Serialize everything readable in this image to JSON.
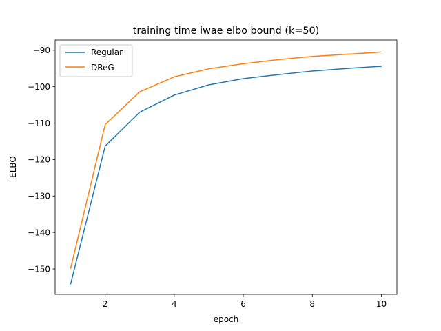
{
  "chart_data": {
    "type": "line",
    "title": "training time iwae elbo bound (k=50)",
    "xlabel": "epoch",
    "ylabel": "ELBO",
    "xlim": [
      0.55,
      10.45
    ],
    "ylim": [
      -157.0,
      -87.2
    ],
    "xticks": [
      2,
      4,
      6,
      8,
      10
    ],
    "yticks": [
      -150,
      -140,
      -130,
      -120,
      -110,
      -100,
      -90
    ],
    "xtick_labels": [
      "2",
      "4",
      "6",
      "8",
      "10"
    ],
    "ytick_labels": [
      "−150",
      "−140",
      "−130",
      "−120",
      "−110",
      "−100",
      "−90"
    ],
    "grid": false,
    "legend_position": "upper-left",
    "x": [
      1,
      2,
      3,
      4,
      5,
      6,
      7,
      8,
      9,
      10
    ],
    "series": [
      {
        "name": "Regular",
        "color": "#1f77b4",
        "values": [
          -154.1,
          -116.3,
          -107.0,
          -102.3,
          -99.5,
          -97.8,
          -96.7,
          -95.7,
          -95.0,
          -94.4
        ]
      },
      {
        "name": "DReG",
        "color": "#ff7f0e",
        "values": [
          -149.8,
          -110.4,
          -101.4,
          -97.3,
          -95.1,
          -93.7,
          -92.6,
          -91.7,
          -91.1,
          -90.5
        ]
      }
    ]
  }
}
